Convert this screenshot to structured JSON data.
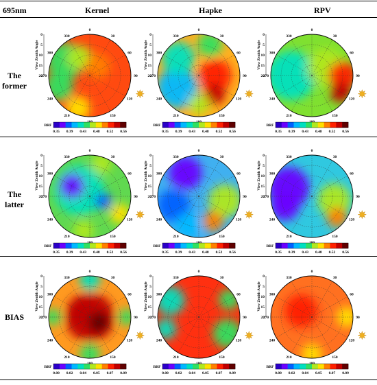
{
  "header": {
    "corner": "695nm",
    "columns": [
      "Kernel",
      "Hapke",
      "RPV"
    ]
  },
  "rows": [
    {
      "label_lines": [
        "The",
        "former"
      ]
    },
    {
      "label_lines": [
        "The",
        "latter"
      ]
    },
    {
      "label_lines": [
        "BIAS"
      ]
    }
  ],
  "chart_data": {
    "type": "heatmap",
    "projection": "polar",
    "radial_axis": {
      "label": "View Zenith Angle",
      "ticks": [
        "0",
        "5",
        "10",
        "15",
        "20"
      ],
      "range": [
        0,
        20
      ]
    },
    "azimuth_ticks": [
      "0",
      "30",
      "60",
      "90",
      "120",
      "150",
      "180",
      "210",
      "240",
      "270",
      "300",
      "330"
    ],
    "grid": true,
    "sun_marker": "sun-icon at azimuth ~110",
    "colorbars": [
      {
        "label": "BRF",
        "ticks": [
          "0.35",
          "0.39",
          "0.43",
          "0.48",
          "0.52",
          "0.56"
        ],
        "range": [
          0.35,
          0.56
        ]
      },
      {
        "label": "BRF",
        "ticks": [
          "0.35",
          "0.39",
          "0.43",
          "0.48",
          "0.52",
          "0.56"
        ],
        "range": [
          0.35,
          0.56
        ]
      },
      {
        "label": "BRF",
        "ticks": [
          "0.00",
          "0.02",
          "0.04",
          "0.05",
          "0.07",
          "0.09"
        ],
        "range": [
          0.0,
          0.09
        ]
      }
    ],
    "colorscale": [
      "#2a00c8",
      "#6a00ff",
      "#0060ff",
      "#00b8ff",
      "#00e0c0",
      "#30e060",
      "#b0e820",
      "#ffe000",
      "#ff8000",
      "#ff2000",
      "#c00000",
      "#600000"
    ],
    "panels": [
      {
        "row": "The former",
        "column": "Kernel",
        "background": "#ff4a10",
        "blobs": [
          {
            "az": 300,
            "r": 14,
            "v": 0.44,
            "size": 9
          },
          {
            "az": 250,
            "r": 16,
            "v": 0.45,
            "size": 7
          },
          {
            "az": 330,
            "r": 10,
            "v": 0.47,
            "size": 6
          },
          {
            "az": 200,
            "r": 17,
            "v": 0.49,
            "size": 6
          },
          {
            "az": 40,
            "r": 6,
            "v": 0.5,
            "size": 6
          }
        ]
      },
      {
        "row": "The former",
        "column": "Hapke",
        "background": "#ffb020",
        "blobs": [
          {
            "az": 240,
            "r": 12,
            "v": 0.41,
            "size": 10
          },
          {
            "az": 310,
            "r": 13,
            "v": 0.43,
            "size": 8
          },
          {
            "az": 20,
            "r": 16,
            "v": 0.45,
            "size": 6
          },
          {
            "az": 90,
            "r": 8,
            "v": 0.53,
            "size": 8
          },
          {
            "az": 140,
            "r": 12,
            "v": 0.55,
            "size": 5
          },
          {
            "az": 180,
            "r": 14,
            "v": 0.46,
            "size": 5
          }
        ]
      },
      {
        "row": "The former",
        "column": "RPV",
        "background": "#80e030",
        "blobs": [
          {
            "az": 270,
            "r": 10,
            "v": 0.42,
            "size": 12
          },
          {
            "az": 60,
            "r": 8,
            "v": 0.47,
            "size": 9
          },
          {
            "az": 90,
            "r": 15,
            "v": 0.52,
            "size": 7
          },
          {
            "az": 120,
            "r": 16,
            "v": 0.54,
            "size": 5
          }
        ]
      },
      {
        "row": "The latter",
        "column": "Kernel",
        "background": "#60d850",
        "blobs": [
          {
            "az": 300,
            "r": 6,
            "v": 0.42,
            "size": 12
          },
          {
            "az": 300,
            "r": 10,
            "v": 0.37,
            "size": 6
          },
          {
            "az": 110,
            "r": 7,
            "v": 0.38,
            "size": 4
          },
          {
            "az": 120,
            "r": 17,
            "v": 0.48,
            "size": 5
          },
          {
            "az": 190,
            "r": 17,
            "v": 0.47,
            "size": 5
          },
          {
            "az": 20,
            "r": 17,
            "v": 0.46,
            "size": 5
          }
        ]
      },
      {
        "row": "The latter",
        "column": "Hapke",
        "background": "#40b0f0",
        "blobs": [
          {
            "az": 330,
            "r": 13,
            "v": 0.36,
            "size": 8
          },
          {
            "az": 250,
            "r": 13,
            "v": 0.38,
            "size": 8
          },
          {
            "az": 100,
            "r": 13,
            "v": 0.47,
            "size": 8
          },
          {
            "az": 150,
            "r": 14,
            "v": 0.5,
            "size": 5
          },
          {
            "az": 200,
            "r": 15,
            "v": 0.4,
            "size": 6
          }
        ]
      },
      {
        "row": "The latter",
        "column": "RPV",
        "background": "#30c8e0",
        "blobs": [
          {
            "az": 290,
            "r": 12,
            "v": 0.37,
            "size": 10
          },
          {
            "az": 250,
            "r": 14,
            "v": 0.36,
            "size": 7
          },
          {
            "az": 100,
            "r": 11,
            "v": 0.47,
            "size": 8
          },
          {
            "az": 130,
            "r": 16,
            "v": 0.5,
            "size": 5
          }
        ]
      },
      {
        "row": "BIAS",
        "column": "Kernel",
        "background": "#ff9a20",
        "blobs": [
          {
            "az": 0,
            "r": 0,
            "v": 0.08,
            "size": 12
          },
          {
            "az": 120,
            "r": 5,
            "v": 0.09,
            "size": 5
          },
          {
            "az": 300,
            "r": 5,
            "v": 0.08,
            "size": 6
          },
          {
            "az": 0,
            "r": 18,
            "v": 0.03,
            "size": 5
          },
          {
            "az": 180,
            "r": 18,
            "v": 0.04,
            "size": 5
          },
          {
            "az": 270,
            "r": 18,
            "v": 0.04,
            "size": 4
          },
          {
            "az": 90,
            "r": 18,
            "v": 0.04,
            "size": 4
          }
        ]
      },
      {
        "row": "BIAS",
        "column": "Hapke",
        "background": "#ff3010",
        "blobs": [
          {
            "az": 300,
            "r": 16,
            "v": 0.03,
            "size": 7
          },
          {
            "az": 250,
            "r": 17,
            "v": 0.03,
            "size": 5
          },
          {
            "az": 120,
            "r": 16,
            "v": 0.04,
            "size": 7
          },
          {
            "az": 60,
            "r": 17,
            "v": 0.04,
            "size": 5
          }
        ]
      },
      {
        "row": "BIAS",
        "column": "RPV",
        "background": "#ff7020",
        "blobs": [
          {
            "az": 300,
            "r": 6,
            "v": 0.07,
            "size": 8
          },
          {
            "az": 90,
            "r": 17,
            "v": 0.06,
            "size": 5
          },
          {
            "az": 180,
            "r": 18,
            "v": 0.06,
            "size": 5
          }
        ]
      }
    ]
  }
}
